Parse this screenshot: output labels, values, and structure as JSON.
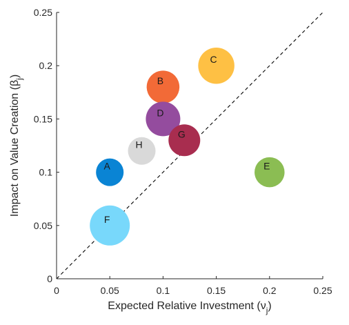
{
  "chart_data": {
    "type": "scatter",
    "xlabel": "Expected Relative Investment (ν",
    "xlabel_sub": "j",
    "xlabel_close": ")",
    "ylabel": "Impact on Value Creation (β",
    "ylabel_sub": "j",
    "ylabel_close": ")",
    "xlim": [
      0,
      0.25
    ],
    "ylim": [
      0,
      0.25
    ],
    "xticks": [
      0,
      0.05,
      0.1,
      0.15,
      0.2,
      0.25
    ],
    "yticks": [
      0,
      0.05,
      0.1,
      0.15,
      0.2,
      0.25
    ],
    "xtick_labels": [
      "0",
      "0.05",
      "0.1",
      "0.15",
      "0.2",
      "0.25"
    ],
    "ytick_labels": [
      "0",
      "0.05",
      "0.1",
      "0.15",
      "0.2",
      "0.25"
    ],
    "grid": false,
    "reference_line": {
      "style": "dashed",
      "from": [
        0,
        0
      ],
      "to": [
        0.25,
        0.25
      ]
    },
    "points": [
      {
        "label": "A",
        "x": 0.05,
        "y": 0.1,
        "size": 0.8,
        "color": "#0a84d4"
      },
      {
        "label": "B",
        "x": 0.1,
        "y": 0.18,
        "size": 0.95,
        "color": "#f26a37"
      },
      {
        "label": "C",
        "x": 0.15,
        "y": 0.2,
        "size": 1.05,
        "color": "#fec044"
      },
      {
        "label": "D",
        "x": 0.1,
        "y": 0.15,
        "size": 1.0,
        "color": "#944c9e"
      },
      {
        "label": "E",
        "x": 0.2,
        "y": 0.1,
        "size": 0.87,
        "color": "#8bbd53"
      },
      {
        "label": "F",
        "x": 0.05,
        "y": 0.05,
        "size": 1.16,
        "color": "#78d8fb"
      },
      {
        "label": "G",
        "x": 0.12,
        "y": 0.13,
        "size": 0.92,
        "color": "#a82d4f"
      },
      {
        "label": "H",
        "x": 0.08,
        "y": 0.12,
        "size": 0.8,
        "color": "#d9d9d9"
      }
    ]
  }
}
